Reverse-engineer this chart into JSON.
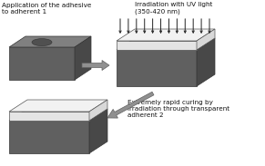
{
  "bg_color": "#ffffff",
  "dark_gray": "#606060",
  "mid_gray": "#808080",
  "side_gray": "#484848",
  "light_gray": "#c8c8c8",
  "very_light_gray": "#e4e4e4",
  "white_layer": "#f0f0f0",
  "arrow_color": "#909090",
  "arrow_edge": "#606060",
  "text_color": "#111111",
  "uv_line_color": "#222222",
  "title_text": "Application of the adhesive\nto adherent 1",
  "title2_text": "Irradiation with UV light\n(350-420 nm)",
  "title3_text": "Extremely rapid curing by\nirradiation through transparent\nadherent 2"
}
